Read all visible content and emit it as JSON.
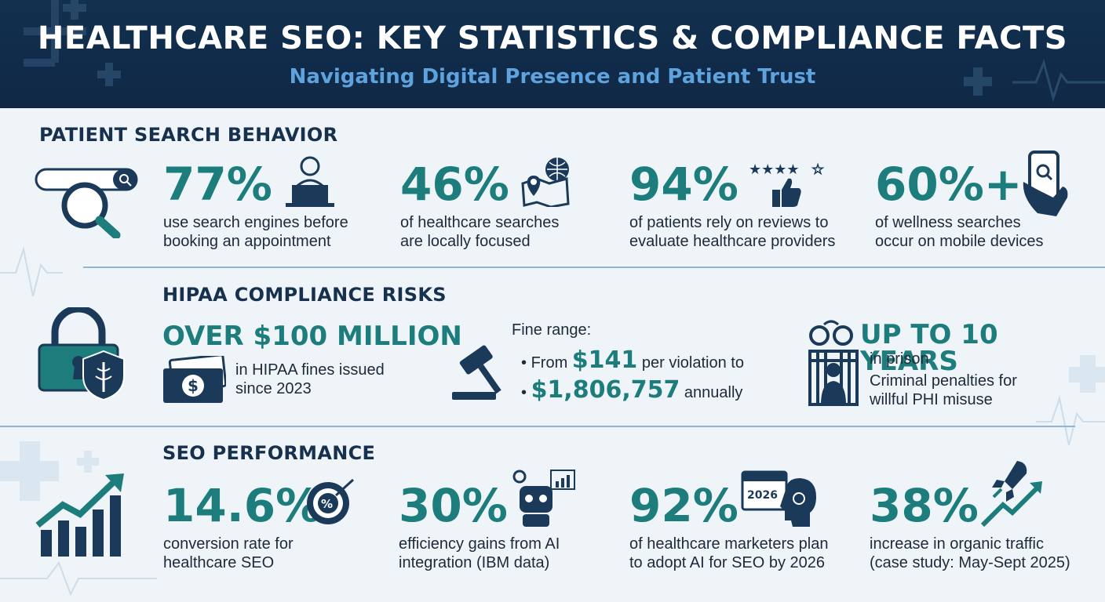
{
  "header": {
    "title": "HEALTHCARE SEO: KEY STATISTICS & COMPLIANCE FACTS",
    "subtitle": "Navigating Digital Presence and Patient Trust"
  },
  "colors": {
    "navy": "#12304f",
    "teal": "#1d7c7c",
    "light_blue": "#5fa3de",
    "background": "#eef4f8"
  },
  "patient_search": {
    "heading": "PATIENT SEARCH BEHAVIOR",
    "stats": [
      {
        "value": "77%",
        "line1": "use search engines before",
        "line2": "booking an appointment",
        "icon": "person-laptop-icon"
      },
      {
        "value": "46%",
        "line1": "of healthcare searches",
        "line2": "are locally focused",
        "icon": "map-pin-globe-icon"
      },
      {
        "value": "94%",
        "line1": "of patients rely on reviews to",
        "line2": "evaluate healthcare providers",
        "icon": "stars-thumbs-up-icon"
      },
      {
        "value": "60%+",
        "line1": "of wellness searches",
        "line2": "occur on mobile devices",
        "icon": "mobile-search-icon"
      }
    ],
    "search_icon": "search-bar-magnifier-icon"
  },
  "hipaa": {
    "heading": "HIPAA COMPLIANCE RISKS",
    "fines_total": "OVER $100 MILLION",
    "fines_line1": "in HIPAA fines issued",
    "fines_line2": "since 2023",
    "fine_range_label": "Fine range:",
    "fine_from_prefix": "From",
    "fine_from_value": "$141",
    "fine_from_suffix": "per violation to",
    "fine_to_value": "$1,806,757",
    "fine_to_suffix": "annually",
    "prison_value": "UP TO 10 YEARS",
    "prison_line1": "in prison",
    "prison_line2": "Criminal penalties for",
    "prison_line3": "willful PHI misuse",
    "icons": [
      "padlock-icon",
      "medical-shield-icon",
      "money-icon",
      "gavel-icon",
      "handcuffs-icon",
      "prison-bars-icon"
    ]
  },
  "seo_performance": {
    "heading": "SEO PERFORMANCE",
    "stats": [
      {
        "value": "14.6%",
        "line1": "conversion rate for",
        "line2": "healthcare SEO",
        "icon": "target-percent-icon"
      },
      {
        "value": "30%",
        "line1": "efficiency gains from AI",
        "line2": "integration (IBM data)",
        "icon": "robot-chart-icon"
      },
      {
        "value": "92%",
        "line1": "of healthcare marketers plan",
        "line2": "to adopt AI for SEO by 2026",
        "icon": "calendar-brain-icon",
        "calendar_text": "2026"
      },
      {
        "value": "38%",
        "line1": "increase in organic traffic",
        "line2": "(case study: May-Sept 2025)",
        "icon": "rocket-arrow-icon"
      }
    ],
    "growth_icon": "growth-bar-chart-icon"
  }
}
